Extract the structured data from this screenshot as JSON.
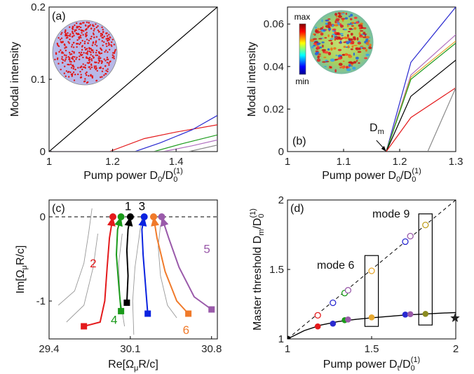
{
  "chart_data": [
    {
      "panel": "(a)",
      "type": "line",
      "xlabel": "Pump power D",
      "xlabel_sub": "0",
      "xlabel_den": "/D",
      "xlabel_den_sub": "0",
      "xlabel_den_sup": "(1)",
      "ylabel": "Modal intensity",
      "xlim": [
        1,
        1.53
      ],
      "ylim": [
        0,
        0.2
      ],
      "xticks": [
        "1",
        "1.2",
        "1.4"
      ],
      "yticks": [
        "0",
        "0.1",
        "0.2"
      ],
      "series": [
        {
          "color": "#000000",
          "x": [
            1.0,
            1.53
          ],
          "y": [
            0.0,
            0.2
          ]
        },
        {
          "color": "#e41a1c",
          "x": [
            1.0,
            1.19,
            1.3,
            1.4,
            1.53
          ],
          "y": [
            0,
            0,
            0.018,
            0.027,
            0.037
          ]
        },
        {
          "color": "#2a2ad0",
          "x": [
            1.0,
            1.27,
            1.35,
            1.45,
            1.53
          ],
          "y": [
            0,
            0,
            0.012,
            0.03,
            0.05
          ]
        },
        {
          "color": "#1a9a1a",
          "x": [
            1.0,
            1.33,
            1.42,
            1.53
          ],
          "y": [
            0,
            0,
            0.011,
            0.023
          ]
        },
        {
          "color": "#b070c0",
          "x": [
            1.0,
            1.36,
            1.45,
            1.53
          ],
          "y": [
            0,
            0,
            0.008,
            0.016
          ]
        },
        {
          "color": "#8a8a8a",
          "x": [
            1.0,
            1.44,
            1.53
          ],
          "y": [
            0,
            0,
            0.009
          ]
        }
      ]
    },
    {
      "panel": "(b)",
      "type": "line",
      "xlabel": "Pump power D",
      "xlabel_sub": "0",
      "xlabel_den": "/D",
      "xlabel_den_sub": "0",
      "xlabel_den_sup": "(1)",
      "ylabel": "Modal intensity",
      "xlim": [
        1,
        1.3
      ],
      "ylim": [
        0,
        0.068
      ],
      "xticks": [
        "1",
        "1.1",
        "1.2",
        "1.3"
      ],
      "yticks": [
        "0",
        "0.02",
        "0.04",
        "0.06"
      ],
      "colorbar_max": "max",
      "colorbar_min": "min",
      "annotation": "D",
      "annotation_sub": "m",
      "annotation_x": 1.176,
      "series": [
        {
          "color": "#2a2ad0",
          "x": [
            1.176,
            1.22,
            1.3
          ],
          "y": [
            0,
            0.042,
            0.068
          ]
        },
        {
          "color": "#b070c0",
          "x": [
            1.176,
            1.22,
            1.3
          ],
          "y": [
            0,
            0.036,
            0.055
          ]
        },
        {
          "color": "#e6a830",
          "x": [
            1.176,
            1.22,
            1.3
          ],
          "y": [
            0,
            0.035,
            0.052
          ]
        },
        {
          "color": "#1a9a1a",
          "x": [
            1.176,
            1.22,
            1.3
          ],
          "y": [
            0,
            0.034,
            0.051
          ]
        },
        {
          "color": "#000000",
          "x": [
            1.176,
            1.22,
            1.3
          ],
          "y": [
            0,
            0.026,
            0.043
          ]
        },
        {
          "color": "#e41a1c",
          "x": [
            1.176,
            1.22,
            1.3
          ],
          "y": [
            0,
            0.016,
            0.03
          ]
        },
        {
          "color": "#8a8a8a",
          "x": [
            1.25,
            1.3
          ],
          "y": [
            0,
            0.03
          ]
        }
      ]
    },
    {
      "panel": "(c)",
      "type": "line",
      "xlabel": "Re[Ω",
      "xlabel_sub": "μ",
      "xlabel_tail": "R/c]",
      "ylabel": "Im[Ω",
      "ylabel_sub": "μ",
      "ylabel_tail": "R/c]",
      "xlim": [
        29.4,
        30.85
      ],
      "ylim": [
        -1.45,
        0.2
      ],
      "xticks": [
        "29.4",
        "30.1",
        "30.8"
      ],
      "yticks": [
        "0",
        "-1"
      ],
      "trajectories": [
        {
          "label": "2",
          "color": "#e41a1c",
          "marker": "square",
          "x": [
            29.7,
            29.84,
            29.88,
            29.9,
            29.92,
            29.95
          ],
          "y": [
            -1.3,
            -1.25,
            -1.0,
            -0.6,
            -0.25,
            0.0
          ]
        },
        {
          "label": "4",
          "color": "#1a9a1a",
          "marker": "square",
          "x": [
            30.02,
            30.0,
            29.98,
            29.99,
            30.02
          ],
          "y": [
            -1.12,
            -0.8,
            -0.45,
            -0.15,
            0.0
          ]
        },
        {
          "label": "1",
          "color": "#000000",
          "marker": "square",
          "x": [
            30.07,
            30.08,
            30.07,
            30.08,
            30.1
          ],
          "y": [
            -1.02,
            -0.7,
            -0.4,
            -0.15,
            0.0
          ]
        },
        {
          "label": "3",
          "color": "#0a22e0",
          "marker": "square",
          "x": [
            30.25,
            30.23,
            30.21,
            30.2,
            30.22
          ],
          "y": [
            -1.15,
            -0.8,
            -0.45,
            -0.15,
            0.0
          ]
        },
        {
          "label": "6",
          "color": "#f07a2a",
          "marker": "square",
          "x": [
            30.6,
            30.5,
            30.4,
            30.33,
            30.3
          ],
          "y": [
            -1.15,
            -1.0,
            -0.65,
            -0.25,
            0.0
          ]
        },
        {
          "label": "5",
          "color": "#9a5aaa",
          "marker": "square",
          "x": [
            30.8,
            30.65,
            30.52,
            30.43,
            30.37
          ],
          "y": [
            -1.1,
            -0.95,
            -0.6,
            -0.25,
            0.0
          ]
        }
      ],
      "gray_curves": [
        {
          "x": [
            29.48,
            29.62,
            29.7,
            29.74,
            29.77
          ],
          "y": [
            -1.05,
            -0.88,
            -0.55,
            -0.2,
            0.1
          ]
        },
        {
          "x": [
            29.55,
            29.7,
            29.78,
            29.82
          ],
          "y": [
            -1.25,
            -1.05,
            -0.6,
            -0.2
          ]
        },
        {
          "x": [
            30.05,
            30.01,
            30.0,
            30.03
          ],
          "y": [
            -1.3,
            -0.95,
            -0.55,
            -0.2
          ]
        },
        {
          "x": [
            30.13,
            30.12,
            30.14,
            30.17,
            30.2
          ],
          "y": [
            -1.4,
            -1.0,
            -0.6,
            -0.3,
            0.0
          ]
        },
        {
          "x": [
            30.5,
            30.42,
            30.36,
            30.34,
            30.36
          ],
          "y": [
            -1.2,
            -1.05,
            -0.7,
            -0.35,
            -0.1
          ]
        }
      ]
    },
    {
      "panel": "(d)",
      "type": "scatter",
      "xlabel": "Pump power D",
      "xlabel_sub": "t",
      "xlabel_den": "/D",
      "xlabel_den_sub": "0",
      "xlabel_den_sup": "(1)",
      "ylabel": "Master threshold D",
      "ylabel_sub": "m",
      "ylabel_den": "/D",
      "ylabel_den_sub": "0",
      "ylabel_den_sup": "(1)",
      "xlim": [
        1,
        2
      ],
      "ylim": [
        1,
        2
      ],
      "xticks": [
        "1",
        "1.5",
        "2"
      ],
      "yticks": [
        "1",
        "1.5",
        "2"
      ],
      "annotations": [
        "mode 6",
        "mode 9"
      ],
      "dashed_line": {
        "x": [
          1,
          2
        ],
        "y": [
          1,
          2
        ]
      },
      "master_curve": {
        "x": [
          1.0,
          1.1,
          1.2,
          1.3,
          1.4,
          1.5,
          1.7,
          1.9,
          2.0
        ],
        "y": [
          1.0,
          1.06,
          1.1,
          1.125,
          1.14,
          1.152,
          1.172,
          1.185,
          1.19
        ]
      },
      "open_points": [
        {
          "x": 1.18,
          "y": 1.17,
          "color": "#e41a1c"
        },
        {
          "x": 1.27,
          "y": 1.26,
          "color": "#2a2ad0"
        },
        {
          "x": 1.34,
          "y": 1.33,
          "color": "#1a9a1a"
        },
        {
          "x": 1.36,
          "y": 1.35,
          "color": "#9a5aaa"
        },
        {
          "x": 1.5,
          "y": 1.49,
          "color": "#e6a830"
        },
        {
          "x": 1.7,
          "y": 1.7,
          "color": "#2a2ad0"
        },
        {
          "x": 1.73,
          "y": 1.74,
          "color": "#9a5aaa"
        },
        {
          "x": 1.82,
          "y": 1.82,
          "color": "#c0a020"
        }
      ],
      "filled_points": [
        {
          "x": 1.18,
          "y": 1.09,
          "color": "#e41a1c"
        },
        {
          "x": 1.27,
          "y": 1.11,
          "color": "#2a2ad0"
        },
        {
          "x": 1.34,
          "y": 1.135,
          "color": "#1a9a1a"
        },
        {
          "x": 1.36,
          "y": 1.14,
          "color": "#9a5aaa"
        },
        {
          "x": 1.5,
          "y": 1.155,
          "color": "#e6a830"
        },
        {
          "x": 1.7,
          "y": 1.175,
          "color": "#2a2ad0"
        },
        {
          "x": 1.73,
          "y": 1.178,
          "color": "#9a5aaa"
        },
        {
          "x": 1.82,
          "y": 1.18,
          "color": "#8a8a20"
        }
      ],
      "start_point": {
        "x": 1.0,
        "y": 1.0
      },
      "star_point": {
        "x": 2.0,
        "y": 1.15
      },
      "boxes": [
        {
          "x0": 1.46,
          "x1": 1.54,
          "y0": 1.09,
          "y1": 1.6
        },
        {
          "x0": 1.78,
          "x1": 1.86,
          "y0": 1.1,
          "y1": 1.9
        }
      ]
    }
  ]
}
